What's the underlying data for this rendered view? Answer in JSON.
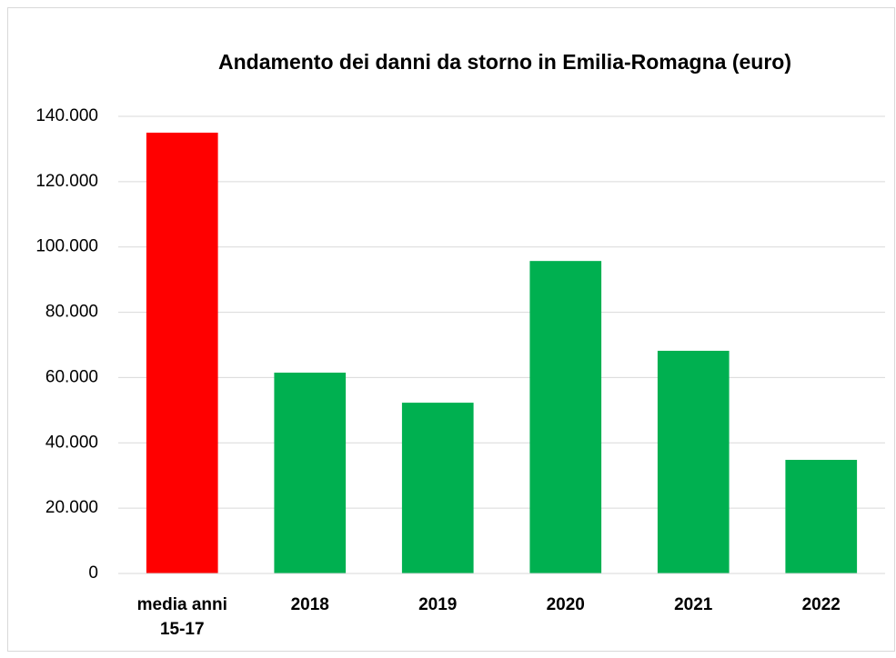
{
  "chart_data": {
    "type": "bar",
    "title": "Andamento dei danni da storno in Emilia-Romagna (euro)",
    "categories": [
      "media anni 15-17",
      "2018",
      "2019",
      "2020",
      "2021",
      "2022"
    ],
    "values": [
      135000,
      61500,
      52300,
      95700,
      68200,
      34800
    ],
    "colors": [
      "#ff0000",
      "#00b050",
      "#00b050",
      "#00b050",
      "#00b050",
      "#00b050"
    ],
    "ylim": [
      0,
      140000
    ],
    "yticks": [
      0,
      {
        "value": 20000,
        "label": "20.000"
      },
      {
        "value": 40000,
        "label": "40.000"
      },
      {
        "value": 60000,
        "label": "60.000"
      },
      {
        "value": 80000,
        "label": "80.000"
      },
      {
        "value": 100000,
        "label": "100.000"
      },
      {
        "value": 120000,
        "label": "120.000"
      },
      {
        "value": 140000,
        "label": "140.000"
      }
    ],
    "grid": true
  }
}
